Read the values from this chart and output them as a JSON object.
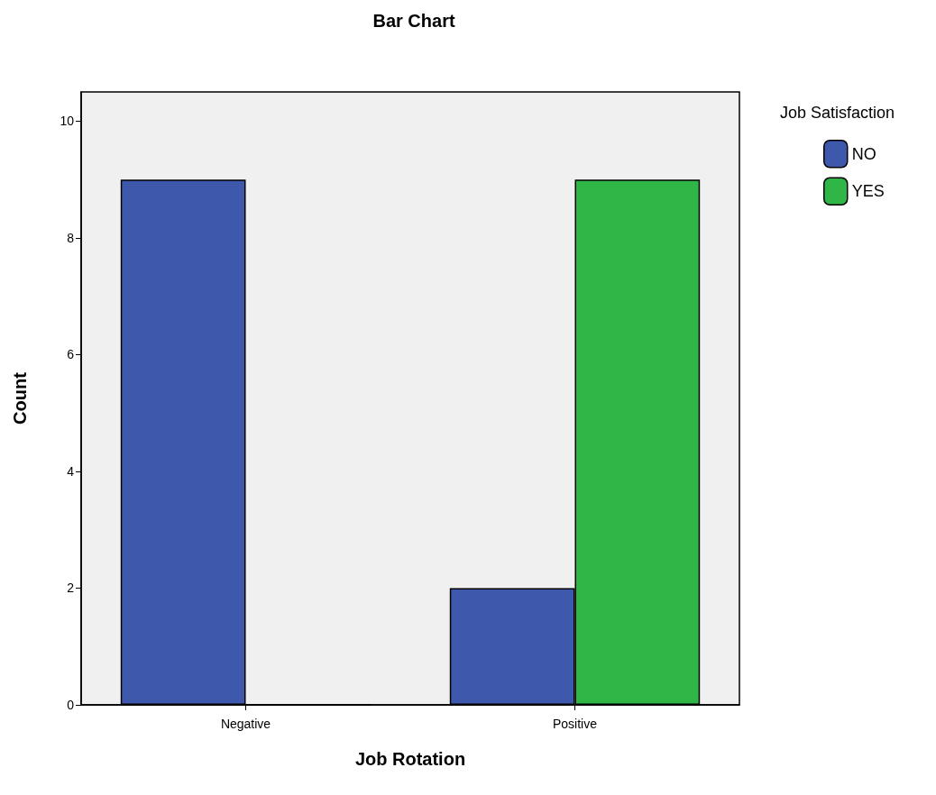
{
  "chart_data": {
    "type": "bar",
    "title": "Bar Chart",
    "xlabel": "Job Rotation",
    "ylabel": "Count",
    "legend_title": "Job Satisfaction",
    "categories": [
      "Negative",
      "Positive"
    ],
    "series": [
      {
        "name": "NO",
        "color": "#3e58ac",
        "values": [
          9,
          2
        ]
      },
      {
        "name": "YES",
        "color": "#2fb647",
        "values": [
          0,
          9
        ]
      }
    ],
    "ylim": [
      0,
      10.5
    ],
    "yticks": [
      0,
      2,
      4,
      6,
      8,
      10
    ],
    "grid": false,
    "legend": "right"
  }
}
